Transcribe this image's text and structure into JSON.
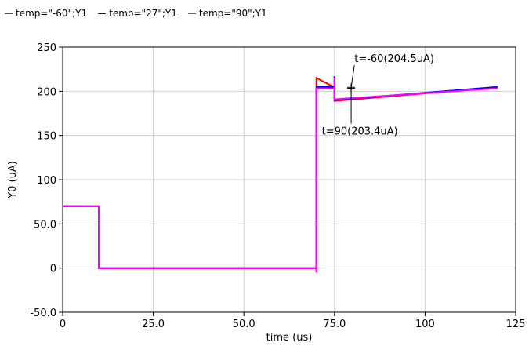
{
  "chart_data": {
    "type": "line",
    "title": "",
    "xlabel": "time (us)",
    "ylabel": "Y0 (uA)",
    "xlim": [
      0,
      125
    ],
    "ylim": [
      -50,
      250
    ],
    "x_ticks": [
      0,
      25,
      50,
      75,
      100,
      125
    ],
    "x_tick_labels": [
      "0",
      "25.0",
      "50.0",
      "75.0",
      "100",
      "125"
    ],
    "y_ticks": [
      -50,
      0,
      50,
      100,
      150,
      200,
      250
    ],
    "y_tick_labels": [
      "-50.0",
      "0",
      "50.0",
      "100",
      "150",
      "200",
      "250"
    ],
    "grid": true,
    "legend_position": "top-left",
    "series": [
      {
        "name": "temp=\"-60\";Y1",
        "color": "#ff0000",
        "x": [
          0,
          10,
          10,
          70,
          70,
          70,
          75,
          75,
          75,
          120
        ],
        "y": [
          70,
          70,
          0,
          0,
          -5,
          215,
          204.5,
          217,
          189,
          204.5
        ]
      },
      {
        "name": "temp=\"27\";Y1",
        "color": "#0000ff",
        "x": [
          0,
          10,
          10,
          70,
          70,
          75,
          75,
          75,
          120
        ],
        "y": [
          70,
          70,
          0,
          0,
          205,
          205,
          217,
          190,
          205
        ]
      },
      {
        "name": "temp=\"90\";Y1",
        "color": "#ff00ff",
        "x": [
          0,
          10,
          10,
          70,
          70,
          70,
          75,
          75,
          75,
          120
        ],
        "y": [
          70,
          70,
          0,
          0,
          -5,
          203.4,
          203.4,
          215,
          191,
          203.4
        ]
      }
    ],
    "annotations": [
      {
        "text": "t=-60(204.5uA)",
        "x": 79.6,
        "y": 204.5,
        "label_x": 80.5,
        "label_y": 233
      },
      {
        "text": "t=90(203.4uA)",
        "x": 79.6,
        "y": 203.4,
        "label_x": 71.5,
        "label_y": 151
      }
    ]
  }
}
